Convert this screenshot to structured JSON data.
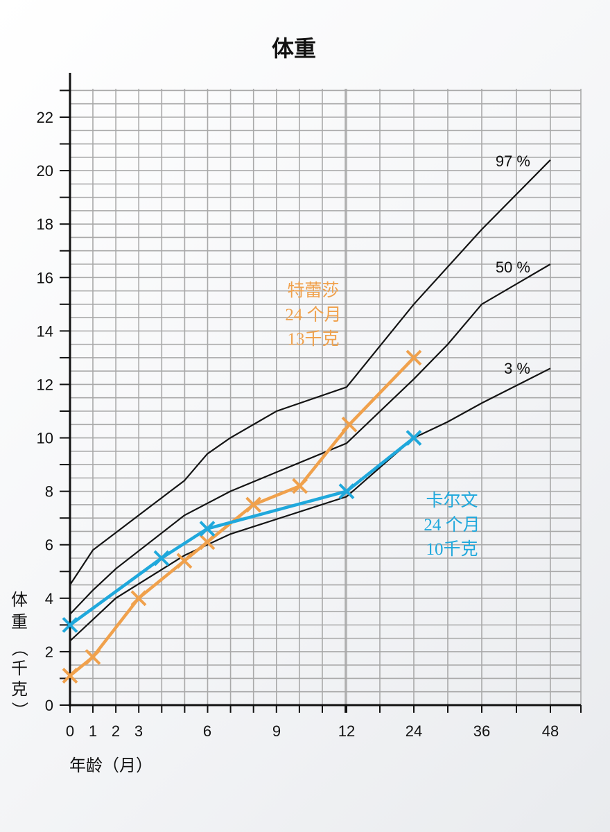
{
  "chart_data": {
    "type": "line",
    "title": "体重",
    "ylabel_chars": [
      "体",
      "重",
      "（",
      "千",
      "克",
      "）"
    ],
    "xlabel": "年龄（月）",
    "x_ticks": [
      "0",
      "1",
      "2",
      "3",
      "6",
      "9",
      "12",
      "24",
      "36",
      "48"
    ],
    "y_ticks": [
      0,
      2,
      4,
      6,
      8,
      10,
      12,
      14,
      16,
      18,
      20,
      22
    ],
    "ylim": [
      0,
      23
    ],
    "grid": true,
    "percentile_curves": [
      {
        "label": "97 %",
        "points": [
          [
            0,
            4.5
          ],
          [
            1,
            5.8
          ],
          [
            3,
            7.1
          ],
          [
            5,
            8.4
          ],
          [
            6,
            9.4
          ],
          [
            7,
            10.0
          ],
          [
            9,
            11.0
          ],
          [
            12,
            11.9
          ],
          [
            24,
            15.0
          ],
          [
            36,
            17.8
          ],
          [
            48,
            20.4
          ]
        ]
      },
      {
        "label": "50 %",
        "points": [
          [
            0,
            3.4
          ],
          [
            1,
            4.3
          ],
          [
            2,
            5.1
          ],
          [
            5,
            7.1
          ],
          [
            7,
            8.0
          ],
          [
            12,
            9.8
          ],
          [
            24,
            12.2
          ],
          [
            30,
            13.5
          ],
          [
            36,
            15.0
          ],
          [
            48,
            16.5
          ]
        ]
      },
      {
        "label": "3 %",
        "points": [
          [
            0,
            2.4
          ],
          [
            1,
            3.2
          ],
          [
            2,
            4.0
          ],
          [
            5,
            5.6
          ],
          [
            7,
            6.4
          ],
          [
            12,
            7.8
          ],
          [
            24,
            10.0
          ],
          [
            30,
            10.6
          ],
          [
            36,
            11.3
          ],
          [
            48,
            12.6
          ]
        ]
      }
    ],
    "series": [
      {
        "name": "特蕾莎",
        "color": "#f0a14c",
        "points": [
          [
            0,
            1.1
          ],
          [
            1,
            1.8
          ],
          [
            3,
            4.0
          ],
          [
            5,
            5.4
          ],
          [
            6,
            6.1
          ],
          [
            8,
            7.5
          ],
          [
            10,
            8.2
          ],
          [
            12.5,
            10.5
          ],
          [
            24,
            13.0
          ]
        ],
        "annotation": [
          "特蕾莎",
          "24 个月",
          "13千克"
        ]
      },
      {
        "name": "卡尔文",
        "color": "#1fa8dc",
        "points": [
          [
            0,
            3.0
          ],
          [
            4,
            5.5
          ],
          [
            6,
            6.6
          ],
          [
            12,
            8.0
          ],
          [
            24,
            10.0
          ]
        ],
        "annotation": [
          "卡尔文",
          "24 个月",
          "10千克"
        ]
      }
    ]
  }
}
